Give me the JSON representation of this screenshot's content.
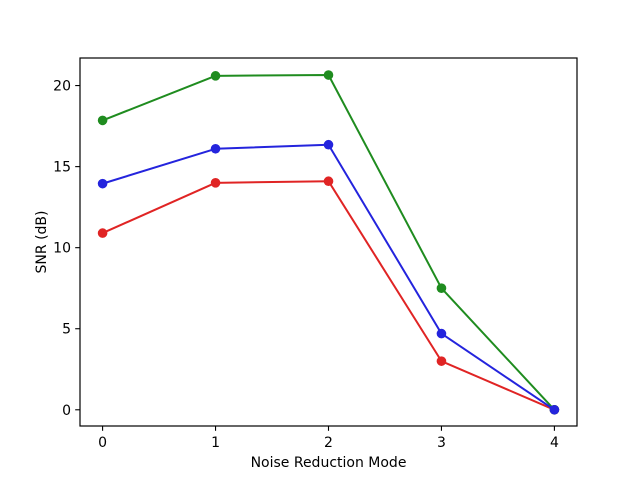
{
  "chart_data": {
    "type": "line",
    "title": "",
    "xlabel": "Noise Reduction Mode",
    "ylabel": "SNR (dB)",
    "x": [
      0,
      1,
      2,
      3,
      4
    ],
    "x_tick_labels": [
      "0",
      "1",
      "2",
      "3",
      "4"
    ],
    "y_ticks": [
      0,
      5,
      10,
      15,
      20
    ],
    "y_tick_labels": [
      "0",
      "5",
      "10",
      "15",
      "20"
    ],
    "xlim": [
      -0.2,
      4.2
    ],
    "ylim": [
      -1.0,
      21.7
    ],
    "grid": false,
    "legend_position": "none",
    "marker": "circle",
    "series": [
      {
        "name": "red-line",
        "color": "#e02424",
        "values": [
          10.9,
          14.0,
          14.1,
          3.0,
          0.0
        ]
      },
      {
        "name": "green-line",
        "color": "#1f8c1f",
        "values": [
          17.85,
          20.6,
          20.65,
          7.5,
          0.0
        ]
      },
      {
        "name": "blue-line",
        "color": "#2424dd",
        "values": [
          13.95,
          16.1,
          16.35,
          4.7,
          0.0
        ]
      }
    ],
    "axis_color": "#000000",
    "background": "#ffffff"
  }
}
